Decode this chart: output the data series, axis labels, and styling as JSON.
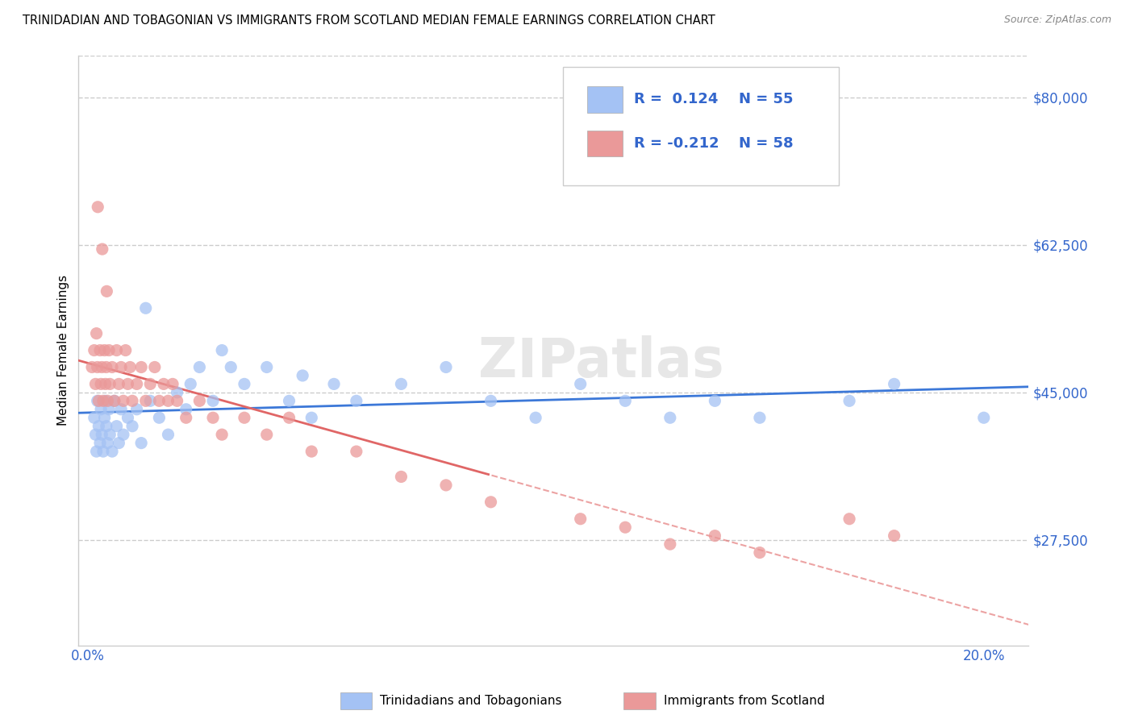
{
  "title": "TRINIDADIAN AND TOBAGONIAN VS IMMIGRANTS FROM SCOTLAND MEDIAN FEMALE EARNINGS CORRELATION CHART",
  "source": "Source: ZipAtlas.com",
  "ylabel": "Median Female Earnings",
  "series": [
    {
      "label": "Trinidadians and Tobagonians",
      "R": 0.124,
      "N": 55,
      "color": "#a4c2f4",
      "line_color": "#3c78d8",
      "line_style": "solid",
      "x": [
        0.15,
        0.18,
        0.2,
        0.22,
        0.25,
        0.28,
        0.3,
        0.32,
        0.35,
        0.38,
        0.4,
        0.42,
        0.45,
        0.48,
        0.5,
        0.55,
        0.6,
        0.65,
        0.7,
        0.75,
        0.8,
        0.9,
        1.0,
        1.1,
        1.2,
        1.4,
        1.6,
        1.8,
        2.0,
        2.2,
        2.5,
        2.8,
        3.0,
        3.5,
        4.0,
        4.5,
        5.0,
        5.5,
        6.0,
        7.0,
        8.0,
        9.0,
        10.0,
        11.0,
        12.0,
        13.0,
        14.0,
        15.0,
        17.0,
        18.0,
        20.0,
        1.3,
        2.3,
        3.2,
        4.8
      ],
      "y": [
        42000,
        40000,
        38000,
        44000,
        41000,
        39000,
        43000,
        40000,
        38000,
        42000,
        44000,
        41000,
        39000,
        43000,
        40000,
        38000,
        44000,
        41000,
        39000,
        43000,
        40000,
        42000,
        41000,
        43000,
        39000,
        44000,
        42000,
        40000,
        45000,
        43000,
        48000,
        44000,
        50000,
        46000,
        48000,
        44000,
        42000,
        46000,
        44000,
        46000,
        48000,
        44000,
        42000,
        46000,
        44000,
        42000,
        44000,
        42000,
        44000,
        46000,
        42000,
        55000,
        46000,
        48000,
        47000
      ]
    },
    {
      "label": "Immigrants from Scotland",
      "R": -0.212,
      "N": 58,
      "color": "#ea9999",
      "line_color": "#e06666",
      "line_style": "solid_to_dashed",
      "x": [
        0.1,
        0.15,
        0.18,
        0.2,
        0.22,
        0.25,
        0.28,
        0.3,
        0.32,
        0.35,
        0.38,
        0.4,
        0.42,
        0.45,
        0.48,
        0.5,
        0.55,
        0.6,
        0.65,
        0.7,
        0.75,
        0.8,
        0.85,
        0.9,
        0.95,
        1.0,
        1.1,
        1.2,
        1.3,
        1.4,
        1.5,
        1.6,
        1.7,
        1.8,
        1.9,
        2.0,
        2.2,
        2.5,
        2.8,
        3.0,
        3.5,
        4.0,
        4.5,
        5.0,
        6.0,
        7.0,
        8.0,
        9.0,
        11.0,
        12.0,
        13.0,
        14.0,
        15.0,
        17.0,
        18.0,
        0.23,
        0.33,
        0.43
      ],
      "y": [
        48000,
        50000,
        46000,
        52000,
        48000,
        44000,
        50000,
        46000,
        48000,
        44000,
        50000,
        46000,
        48000,
        44000,
        50000,
        46000,
        48000,
        44000,
        50000,
        46000,
        48000,
        44000,
        50000,
        46000,
        48000,
        44000,
        46000,
        48000,
        44000,
        46000,
        48000,
        44000,
        46000,
        44000,
        46000,
        44000,
        42000,
        44000,
        42000,
        40000,
        42000,
        40000,
        42000,
        38000,
        38000,
        35000,
        34000,
        32000,
        30000,
        29000,
        27000,
        28000,
        26000,
        30000,
        28000,
        67000,
        62000,
        57000
      ]
    }
  ],
  "yticks": [
    27500,
    45000,
    62500,
    80000
  ],
  "ytick_labels": [
    "$27,500",
    "$45,000",
    "$62,500",
    "$80,000"
  ],
  "ylim": [
    15000,
    85000
  ],
  "xlim": [
    -0.2,
    21.0
  ],
  "x_solid_end": 9.0,
  "grid_color": "#cccccc",
  "bg_color": "#ffffff",
  "watermark": "ZIPatlas",
  "title_color": "#000000",
  "source_color": "#888888",
  "label_color": "#3366cc"
}
